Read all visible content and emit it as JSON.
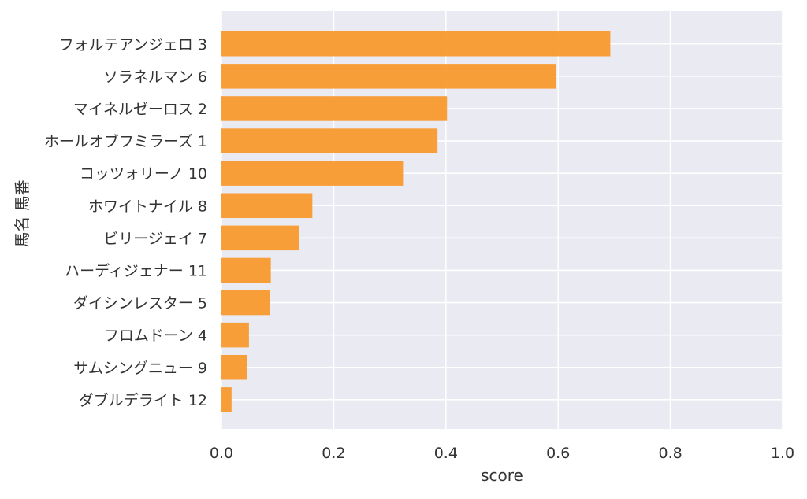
{
  "chart_data": {
    "type": "bar",
    "orientation": "horizontal",
    "categories": [
      "フォルテアンジェロ 3",
      "ソラネルマン 6",
      "マイネルゼーロス 2",
      "ホールオブフミラーズ 1",
      "コッツォリーノ 10",
      "ホワイトナイル 8",
      "ビリージェイ 7",
      "ハーディジェナー 11",
      "ダイシンレスター 5",
      "フロムドーン 4",
      "サムシングニュー 9",
      "ダブルデライト 12"
    ],
    "values": [
      0.693,
      0.596,
      0.402,
      0.385,
      0.325,
      0.162,
      0.138,
      0.088,
      0.087,
      0.049,
      0.045,
      0.018
    ],
    "xlabel": "score",
    "ylabel": "馬名 馬番",
    "xlim": [
      0.0,
      1.0
    ],
    "xticks": [
      "0.0",
      "0.2",
      "0.4",
      "0.6",
      "0.8",
      "1.0"
    ],
    "grid": true,
    "colors": {
      "bar": "#f99a2e",
      "plot_background": "#eaeaf2",
      "grid": "#ffffff",
      "text": "#333333"
    }
  }
}
